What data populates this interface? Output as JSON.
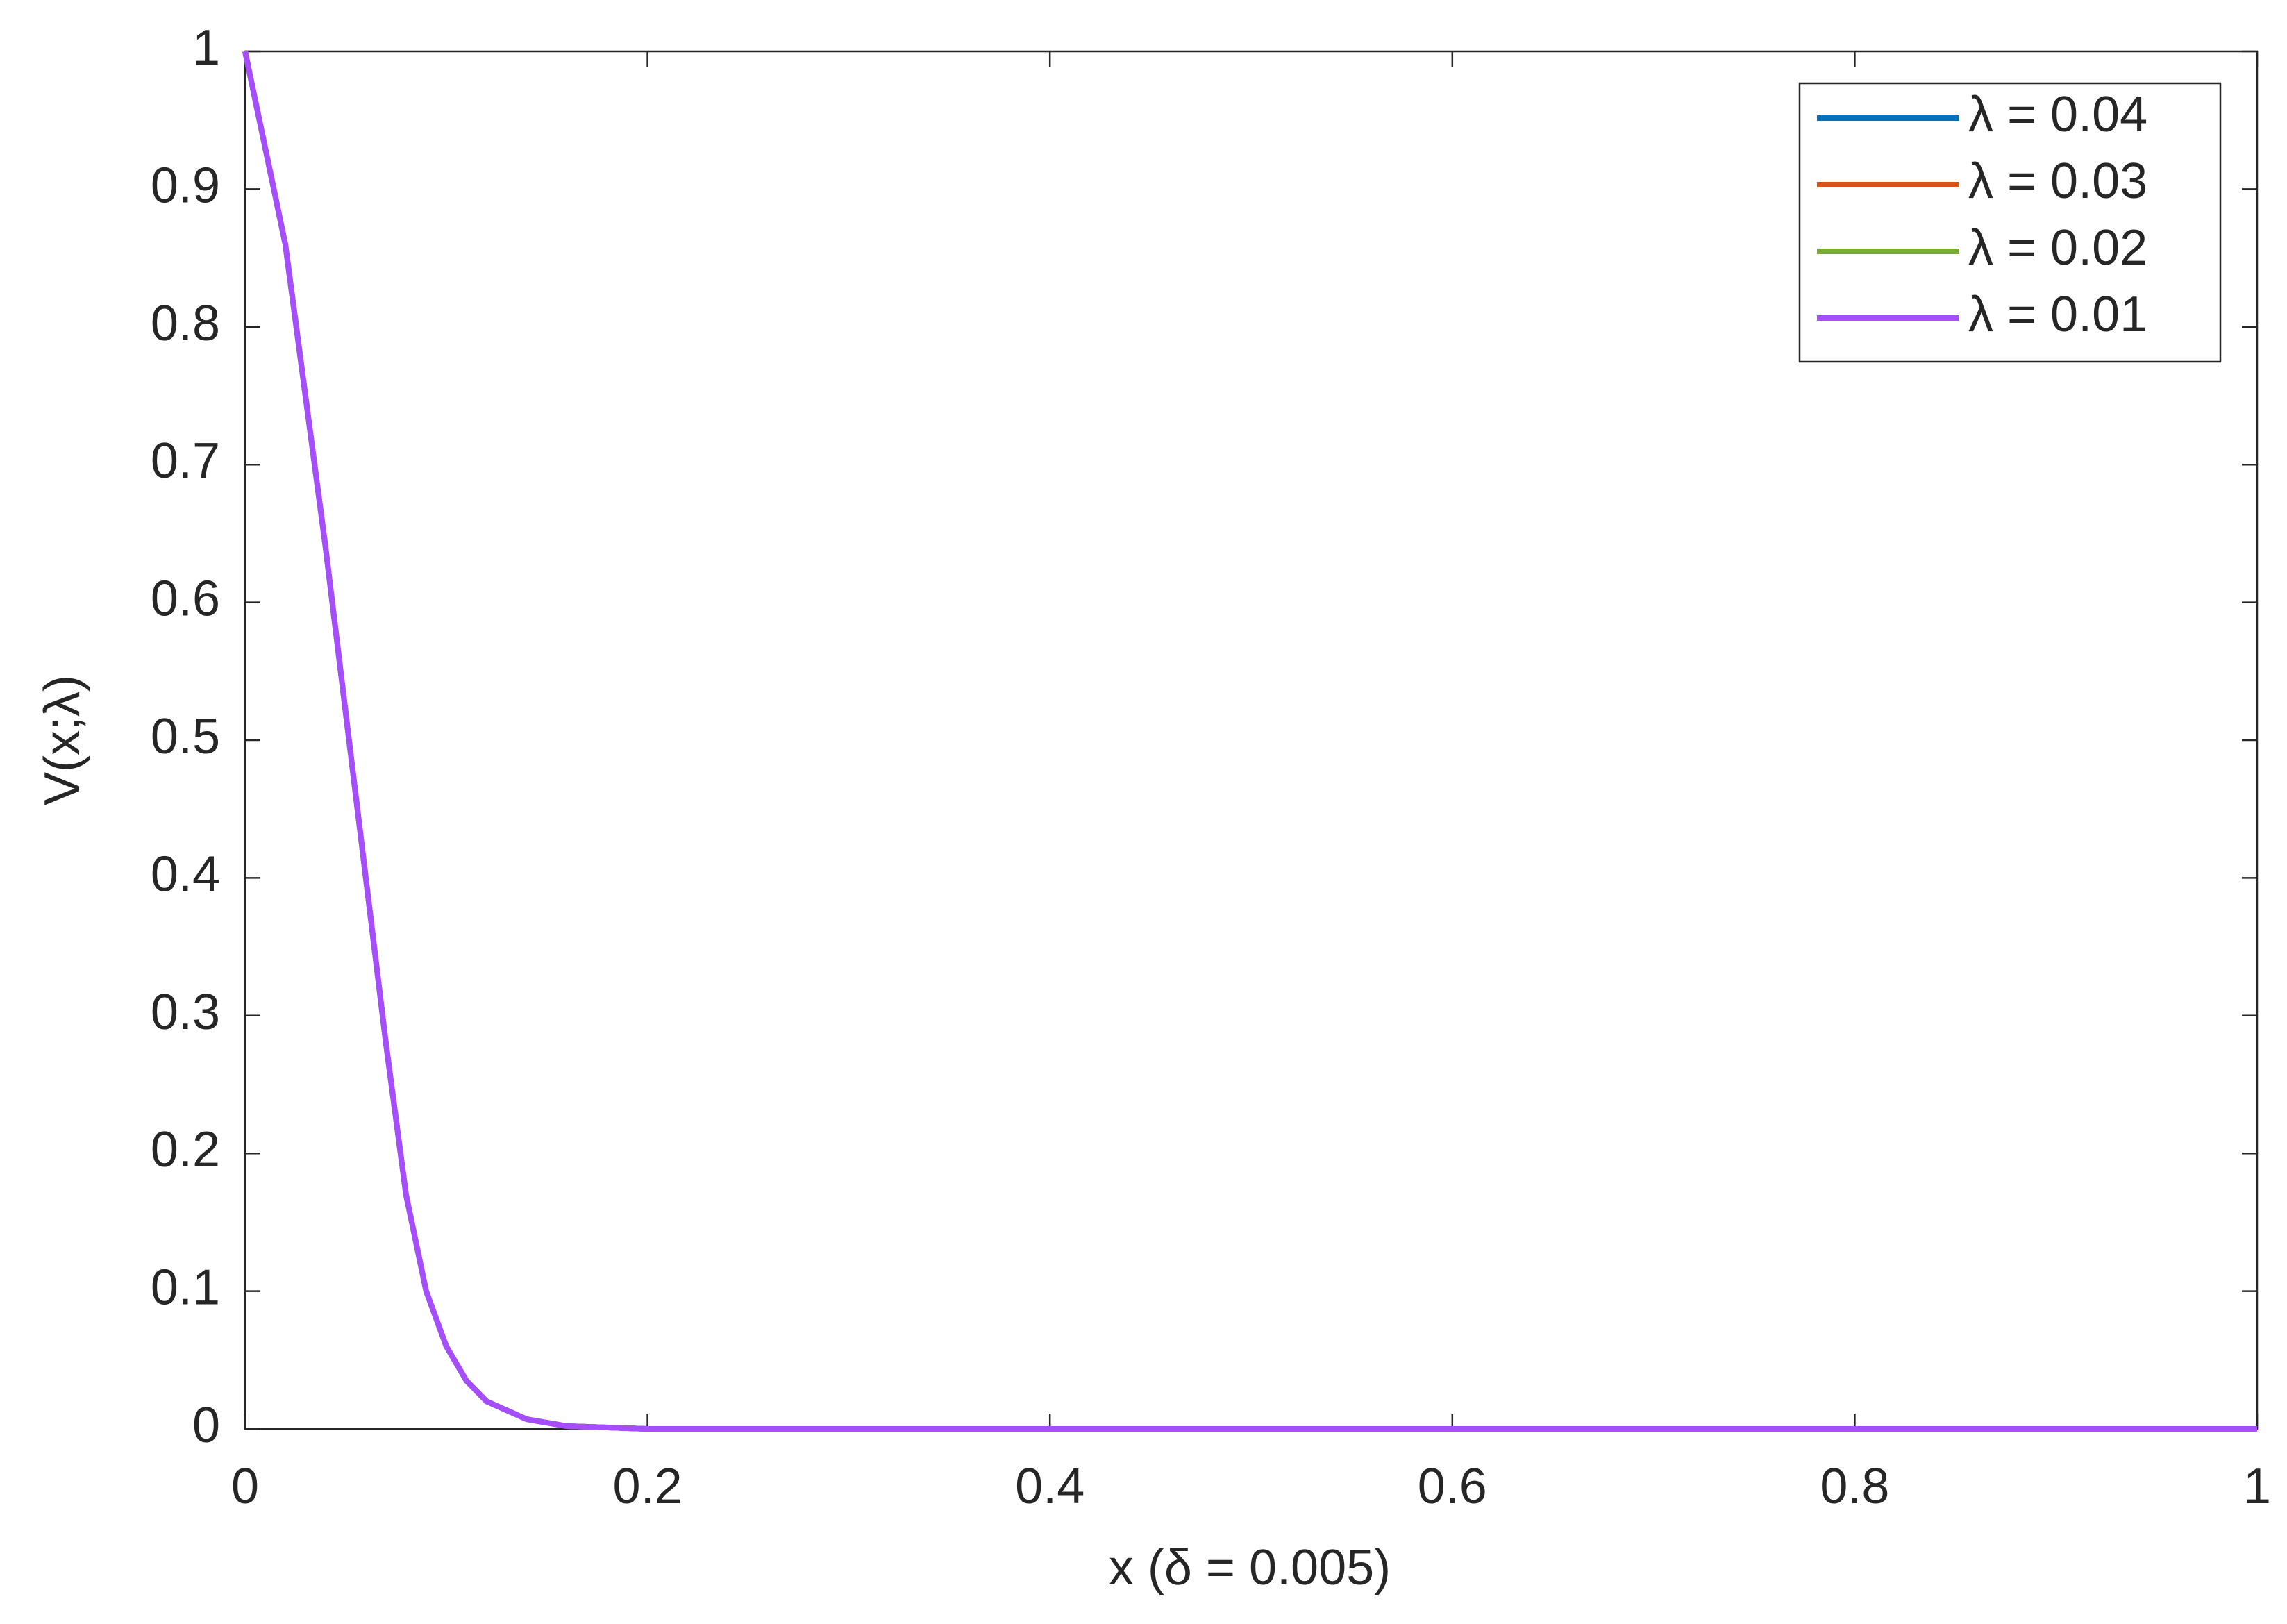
{
  "chart_data": {
    "type": "line",
    "xlabel": "x (δ = 0.005)",
    "ylabel": "V(x;λ)",
    "x": [
      0,
      0.02,
      0.04,
      0.06,
      0.07,
      0.08,
      0.09,
      0.1,
      0.11,
      0.12,
      0.14,
      0.16,
      0.2,
      0.3,
      0.4,
      0.5,
      0.6,
      0.7,
      0.8,
      0.9,
      1.0
    ],
    "series": [
      {
        "name": "λ = 0.04",
        "color": "#0072bd",
        "values": [
          1,
          0.86,
          0.64,
          0.4,
          0.28,
          0.17,
          0.1,
          0.06,
          0.035,
          0.02,
          0.007,
          0.002,
          0,
          0,
          0,
          0,
          0,
          0,
          0,
          0,
          0
        ]
      },
      {
        "name": "λ = 0.03",
        "color": "#d95319",
        "values": [
          1,
          0.86,
          0.64,
          0.4,
          0.28,
          0.17,
          0.1,
          0.06,
          0.035,
          0.02,
          0.007,
          0.002,
          0,
          0,
          0,
          0,
          0,
          0,
          0,
          0,
          0
        ]
      },
      {
        "name": "λ = 0.02",
        "color": "#77ac30",
        "values": [
          1,
          0.86,
          0.64,
          0.4,
          0.28,
          0.17,
          0.1,
          0.06,
          0.035,
          0.02,
          0.007,
          0.002,
          0,
          0,
          0,
          0,
          0,
          0,
          0,
          0,
          0
        ]
      },
      {
        "name": "λ = 0.01",
        "color": "#a64dff",
        "values": [
          1,
          0.86,
          0.64,
          0.4,
          0.28,
          0.17,
          0.1,
          0.06,
          0.035,
          0.02,
          0.007,
          0.002,
          0,
          0,
          0,
          0,
          0,
          0,
          0,
          0,
          0
        ]
      }
    ],
    "xlim": [
      0,
      1
    ],
    "ylim": [
      0,
      1
    ],
    "xticks": [
      0,
      0.2,
      0.4,
      0.6,
      0.8,
      1
    ],
    "yticks": [
      0,
      0.1,
      0.2,
      0.3,
      0.4,
      0.5,
      0.6,
      0.7,
      0.8,
      0.9,
      1
    ],
    "grid": false,
    "legend": "top-right"
  }
}
